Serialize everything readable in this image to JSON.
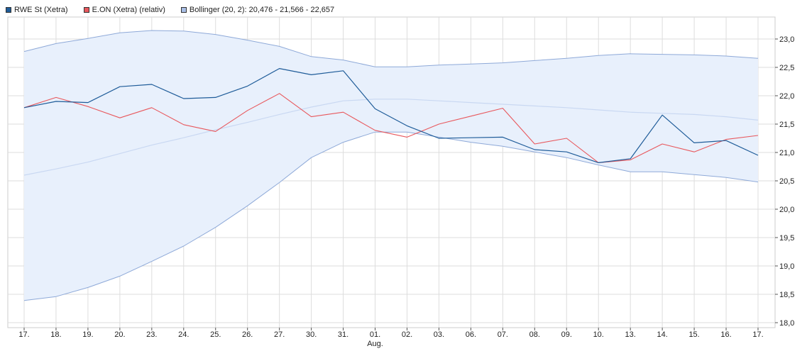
{
  "legend": {
    "rwe_label": "RWE St (Xetra)",
    "eon_label": "E.ON (Xetra) (relativ)",
    "bollinger_label": "Bollinger (20, 2): 20,476 - 21,566 - 22,657"
  },
  "colors": {
    "rwe": "#1f5c99",
    "eon": "#e8585d",
    "band_fill": "#e8f0fc",
    "band_line": "#8ea9d8",
    "middle_line": "#c9d8f2",
    "grid": "#dddddd",
    "axis": "#555555"
  },
  "chart_data": {
    "type": "line",
    "x_labels": [
      "17.",
      "18.",
      "19.",
      "20.",
      "23.",
      "24.",
      "25.",
      "26.",
      "27.",
      "30.",
      "31.",
      "01.",
      "02.",
      "03.",
      "06.",
      "07.",
      "08.",
      "09.",
      "10.",
      "13.",
      "14.",
      "15.",
      "16.",
      "17."
    ],
    "x_sublabels": {
      "11": "Aug."
    },
    "y_ticks": [
      "18,0",
      "18,5",
      "19,0",
      "19,5",
      "20,0",
      "20,5",
      "21,0",
      "21,5",
      "22,0",
      "22,5",
      "23,0"
    ],
    "ylim": [
      18.0,
      23.4
    ],
    "series": [
      {
        "name": "RWE St (Xetra)",
        "values": [
          21.79,
          21.9,
          21.88,
          22.16,
          22.2,
          21.95,
          21.97,
          22.17,
          22.48,
          22.37,
          22.44,
          21.77,
          21.47,
          21.25,
          21.26,
          21.27,
          21.05,
          21.01,
          20.82,
          20.89,
          21.66,
          21.17,
          21.21,
          20.95
        ]
      },
      {
        "name": "E.ON (Xetra) (relativ)",
        "values": [
          21.79,
          21.97,
          21.81,
          21.61,
          21.79,
          21.49,
          21.37,
          21.74,
          22.04,
          21.63,
          21.71,
          21.39,
          21.27,
          21.5,
          21.64,
          21.78,
          21.15,
          21.25,
          20.82,
          20.87,
          21.15,
          21.01,
          21.23,
          21.3
        ]
      },
      {
        "name": "Bollinger (20, 2) upper",
        "values": [
          22.78,
          22.92,
          23.01,
          23.11,
          23.15,
          23.14,
          23.08,
          22.98,
          22.87,
          22.69,
          22.63,
          22.51,
          22.51,
          22.54,
          22.56,
          22.58,
          22.62,
          22.66,
          22.71,
          22.74,
          22.73,
          22.72,
          22.7,
          22.66
        ]
      },
      {
        "name": "Bollinger (20, 2) middle",
        "values": [
          20.6,
          20.71,
          20.83,
          20.98,
          21.13,
          21.26,
          21.4,
          21.53,
          21.67,
          21.8,
          21.91,
          21.94,
          21.94,
          21.91,
          21.88,
          21.85,
          21.82,
          21.79,
          21.75,
          21.71,
          21.69,
          21.67,
          21.63,
          21.57
        ]
      },
      {
        "name": "Bollinger (20, 2) lower",
        "values": [
          18.39,
          18.46,
          18.62,
          18.82,
          19.08,
          19.35,
          19.68,
          20.06,
          20.47,
          20.91,
          21.18,
          21.36,
          21.36,
          21.27,
          21.18,
          21.11,
          21.01,
          20.91,
          20.78,
          20.66,
          20.66,
          20.61,
          20.56,
          20.48
        ]
      }
    ]
  }
}
